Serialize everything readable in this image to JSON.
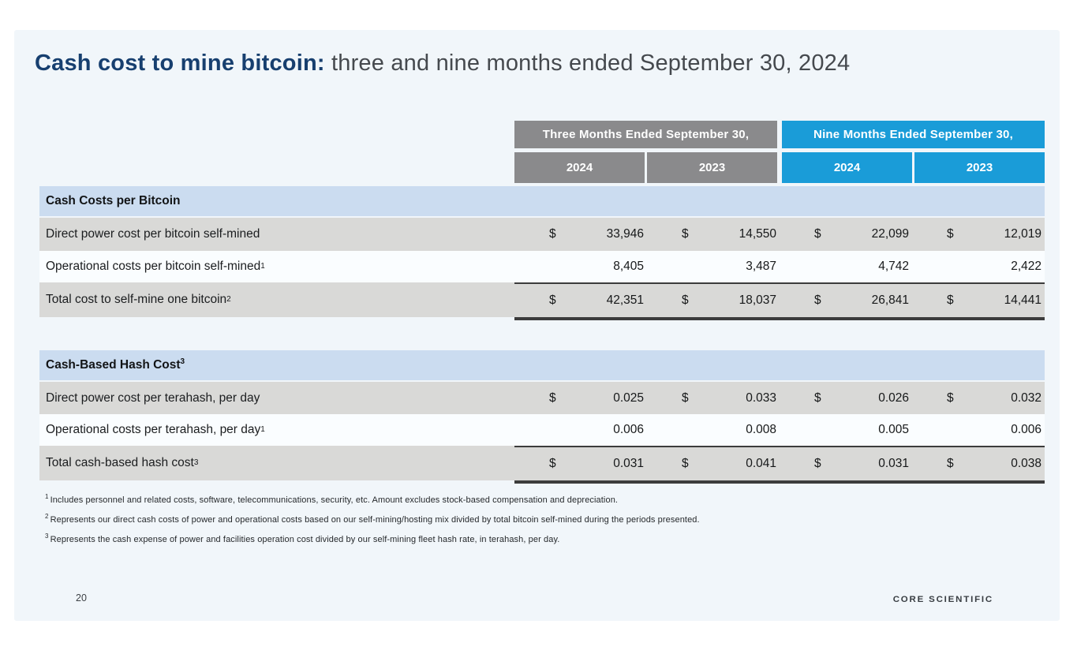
{
  "slide": {
    "title_bold": "Cash cost to mine bitcoin:",
    "title_rest": " three and nine months ended September 30, 2024",
    "page_number": "20",
    "logo_text": "CORE SCIENTIFIC"
  },
  "colors": {
    "header_gray": "#8a8a8c",
    "header_blue": "#1a9cd8",
    "band_blue": "#cbdcf0",
    "row_gray": "#d9d9d7",
    "title_navy": "#173f6f"
  },
  "table": {
    "col_groups": [
      {
        "label": "Three Months Ended September 30,"
      },
      {
        "label": "Nine Months Ended September 30,"
      }
    ],
    "years": [
      "2024",
      "2023",
      "2024",
      "2023"
    ],
    "sections": [
      {
        "header": "Cash Costs per Bitcoin",
        "header_sup": "",
        "rows": [
          {
            "label": "Direct power cost per bitcoin self-mined",
            "sup": "",
            "currency": "$",
            "values": [
              "33,946",
              "14,550",
              "22,099",
              "12,019"
            ]
          },
          {
            "label": "Operational costs per bitcoin self-mined",
            "sup": "1",
            "currency": "",
            "values": [
              "8,405",
              "3,487",
              "4,742",
              "2,422"
            ]
          },
          {
            "label": "Total cost to self-mine one bitcoin",
            "sup": "2",
            "currency": "$",
            "values": [
              "42,351",
              "18,037",
              "26,841",
              "14,441"
            ]
          }
        ]
      },
      {
        "header": "Cash-Based Hash Cost",
        "header_sup": "3",
        "rows": [
          {
            "label": "Direct power cost per terahash, per day",
            "sup": "",
            "currency": "$",
            "values": [
              "0.025",
              "0.033",
              "0.026",
              "0.032"
            ]
          },
          {
            "label": "Operational costs per terahash, per day",
            "sup": "1",
            "currency": "",
            "values": [
              "0.006",
              "0.008",
              "0.005",
              "0.006"
            ]
          },
          {
            "label": "Total cash-based hash cost",
            "sup": "3",
            "currency": "$",
            "values": [
              "0.031",
              "0.041",
              "0.031",
              "0.038"
            ]
          }
        ]
      }
    ]
  },
  "footnotes": [
    {
      "sup": "1",
      "text": "Includes personnel and related costs, software, telecommunications, security, etc. Amount excludes stock-based compensation and depreciation."
    },
    {
      "sup": "2",
      "text": "Represents our direct cash costs of power and operational costs based on our self-mining/hosting mix divided by total bitcoin self-mined during the periods presented."
    },
    {
      "sup": "3",
      "text": "Represents the cash expense of power and facilities operation cost divided by our self-mining fleet hash rate, in terahash, per day."
    }
  ]
}
